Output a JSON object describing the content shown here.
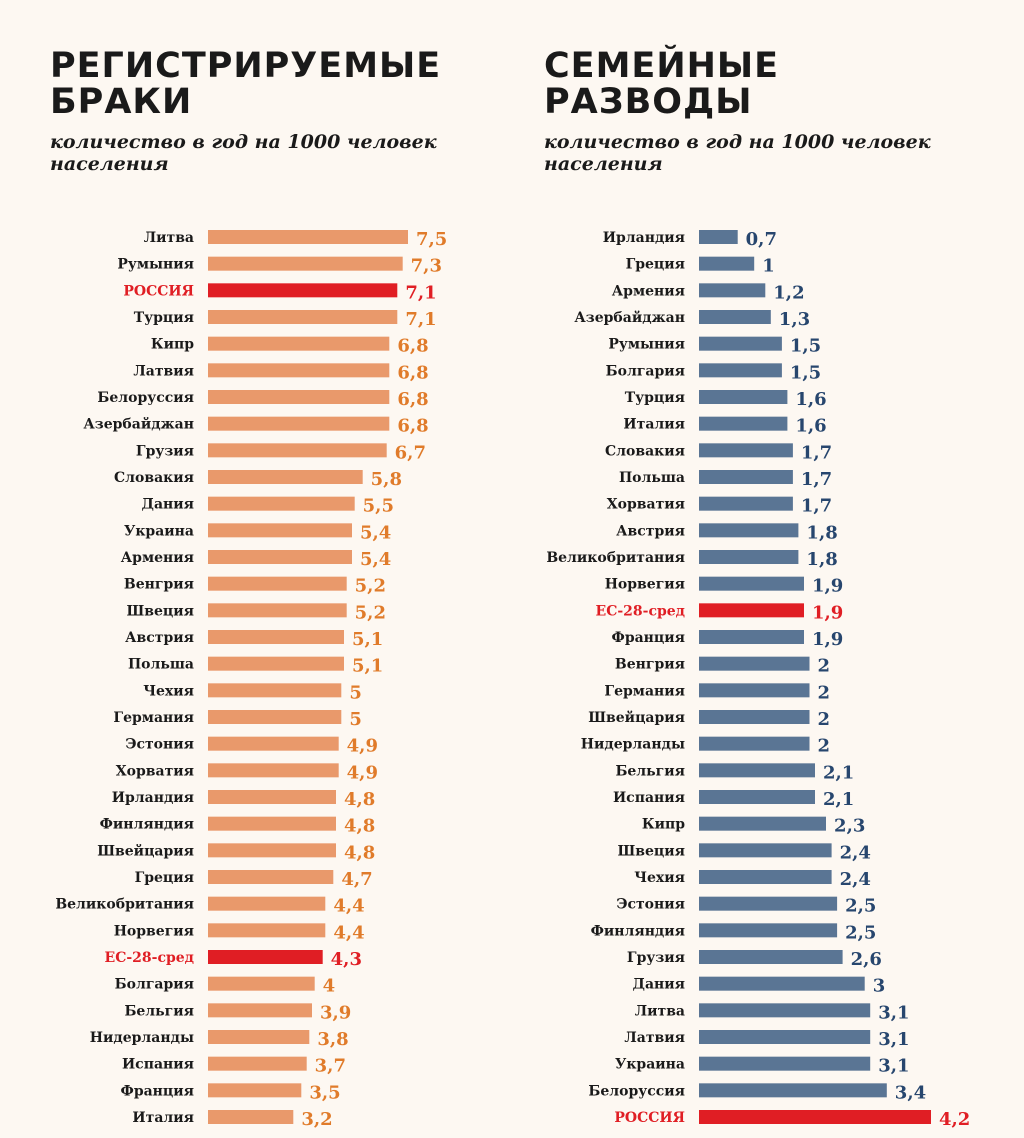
{
  "chart_data": [
    {
      "type": "bar",
      "orientation": "horizontal",
      "title": "РЕГИСТРИРУЕМЫЕ БРАКИ",
      "subtitle": "количество в год на 1000 человек населения",
      "bar_color": "#e9996b",
      "highlight_color": "#e01e24",
      "value_color": "#e07b2a",
      "highlight_categories": [
        "РОССИЯ",
        "ЕС-28-сред"
      ],
      "categories": [
        "Литва",
        "Румыния",
        "РОССИЯ",
        "Турция",
        "Кипр",
        "Латвия",
        "Белоруссия",
        "Азербайджан",
        "Грузия",
        "Словакия",
        "Дания",
        "Украина",
        "Армения",
        "Венгрия",
        "Швеция",
        "Австрия",
        "Польша",
        "Чехия",
        "Германия",
        "Эстония",
        "Хорватия",
        "Ирландия",
        "Финляндия",
        "Швейцария",
        "Греция",
        "Великобритания",
        "Норвегия",
        "ЕС-28-сред",
        "Болгария",
        "Бельгия",
        "Нидерланды",
        "Испания",
        "Франция",
        "Италия"
      ],
      "values": [
        7.5,
        7.3,
        7.1,
        7.1,
        6.8,
        6.8,
        6.8,
        6.8,
        6.7,
        5.8,
        5.5,
        5.4,
        5.4,
        5.2,
        5.2,
        5.1,
        5.1,
        5,
        5,
        4.9,
        4.9,
        4.8,
        4.8,
        4.8,
        4.7,
        4.4,
        4.4,
        4.3,
        4,
        3.9,
        3.8,
        3.7,
        3.5,
        3.2
      ],
      "value_labels": [
        "7,5",
        "7,3",
        "7,1",
        "7,1",
        "6,8",
        "6,8",
        "6,8",
        "6,8",
        "6,7",
        "5,8",
        "5,5",
        "5,4",
        "5,4",
        "5,2",
        "5,2",
        "5,1",
        "5,1",
        "5",
        "5",
        "4,9",
        "4,9",
        "4,8",
        "4,8",
        "4,8",
        "4,7",
        "4,4",
        "4,4",
        "4,3",
        "4",
        "3,9",
        "3,8",
        "3,7",
        "3,5",
        "3,2"
      ],
      "xlim": [
        0,
        7.5
      ]
    },
    {
      "type": "bar",
      "orientation": "horizontal",
      "title": "СЕМЕЙНЫЕ РАЗВОДЫ",
      "subtitle": "количество в год на 1000 человек населения",
      "bar_color": "#5a7594",
      "highlight_color": "#e01e24",
      "value_color": "#27466e",
      "highlight_categories": [
        "ЕС-28-сред",
        "РОССИЯ"
      ],
      "categories": [
        "Ирландия",
        "Греция",
        "Армения",
        "Азербайджан",
        "Румыния",
        "Болгария",
        "Турция",
        "Италия",
        "Словакия",
        "Польша",
        "Хорватия",
        "Австрия",
        "Великобритания",
        "Норвегия",
        "ЕС-28-сред",
        "Франция",
        "Венгрия",
        "Германия",
        "Швейцария",
        "Нидерланды",
        "Бельгия",
        "Испания",
        "Кипр",
        "Швеция",
        "Чехия",
        "Эстония",
        "Финляндия",
        "Грузия",
        "Дания",
        "Литва",
        "Латвия",
        "Украина",
        "Белоруссия",
        "РОССИЯ"
      ],
      "values": [
        0.7,
        1,
        1.2,
        1.3,
        1.5,
        1.5,
        1.6,
        1.6,
        1.7,
        1.7,
        1.7,
        1.8,
        1.8,
        1.9,
        1.9,
        1.9,
        2,
        2,
        2,
        2,
        2.1,
        2.1,
        2.3,
        2.4,
        2.4,
        2.5,
        2.5,
        2.6,
        3,
        3.1,
        3.1,
        3.1,
        3.4,
        4.2
      ],
      "value_labels": [
        "0,7",
        "1",
        "1,2",
        "1,3",
        "1,5",
        "1,5",
        "1,6",
        "1,6",
        "1,7",
        "1,7",
        "1,7",
        "1,8",
        "1,8",
        "1,9",
        "1,9",
        "1,9",
        "2",
        "2",
        "2",
        "2",
        "2,1",
        "2,1",
        "2,3",
        "2,4",
        "2,4",
        "2,5",
        "2,5",
        "2,6",
        "3",
        "3,1",
        "3,1",
        "3,1",
        "3,4",
        "4,2"
      ],
      "xlim": [
        0,
        4.2
      ]
    }
  ]
}
